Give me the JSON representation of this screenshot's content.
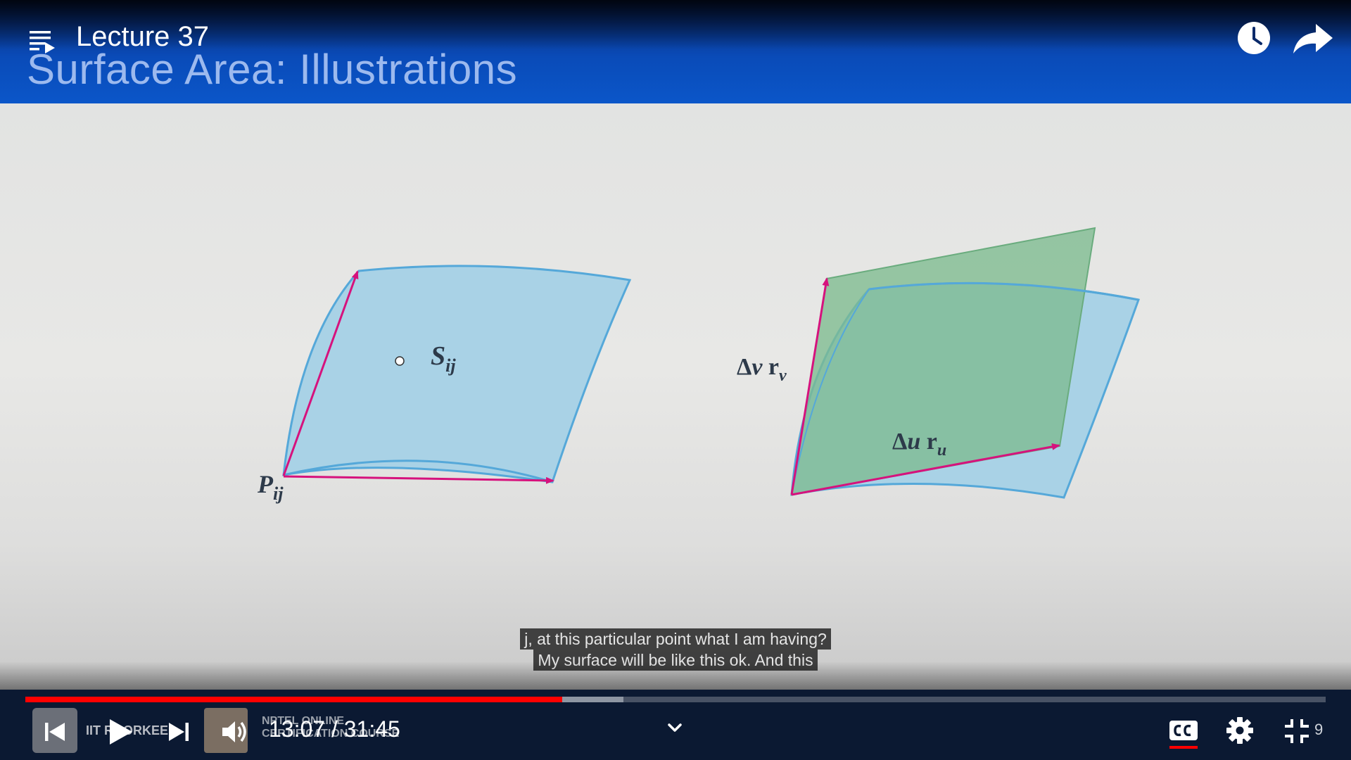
{
  "video": {
    "title": "Lecture 37",
    "time": {
      "current": "13:07",
      "separator": " / ",
      "duration": "31:45"
    },
    "progress": {
      "played_fraction": 0.413,
      "buffered_fraction": 0.46
    }
  },
  "slide": {
    "title": "Surface Area: Illustrations",
    "labels": {
      "left_patch": "S",
      "left_patch_sub": "ij",
      "left_point": "P",
      "left_point_sub": "ij",
      "dv_delta": "Δ",
      "dv_var": "v",
      "dv_vec": "r",
      "dv_sub": "v",
      "du_delta": "Δ",
      "du_var": "u",
      "du_vec": "r",
      "du_sub": "u"
    }
  },
  "captions": {
    "line1": "j, at this particular point what I am having?",
    "line2": "My surface will be like this ok. And this"
  },
  "overlay_logos": {
    "iit_text": "IIT ROORKEE",
    "nptel_line1": "NPTEL ONLINE",
    "nptel_line2": "CERTIFICATION COURSE"
  },
  "controls": {
    "frame_count": "9",
    "icons": [
      "playlist-icon",
      "clock-icon",
      "share-icon",
      "previous-icon",
      "play-icon",
      "next-icon",
      "volume-icon",
      "chevron-down-icon",
      "cc-icon",
      "gear-icon",
      "exit-fullscreen-icon"
    ]
  },
  "colors": {
    "header_blue": "#0a4bb8",
    "patch_blue": "#a9d2e6",
    "patch_green": "#7dbb8f",
    "vector_magenta": "#d6127d",
    "progress_red": "#ff0000",
    "controls_bg": "#0b1932"
  }
}
